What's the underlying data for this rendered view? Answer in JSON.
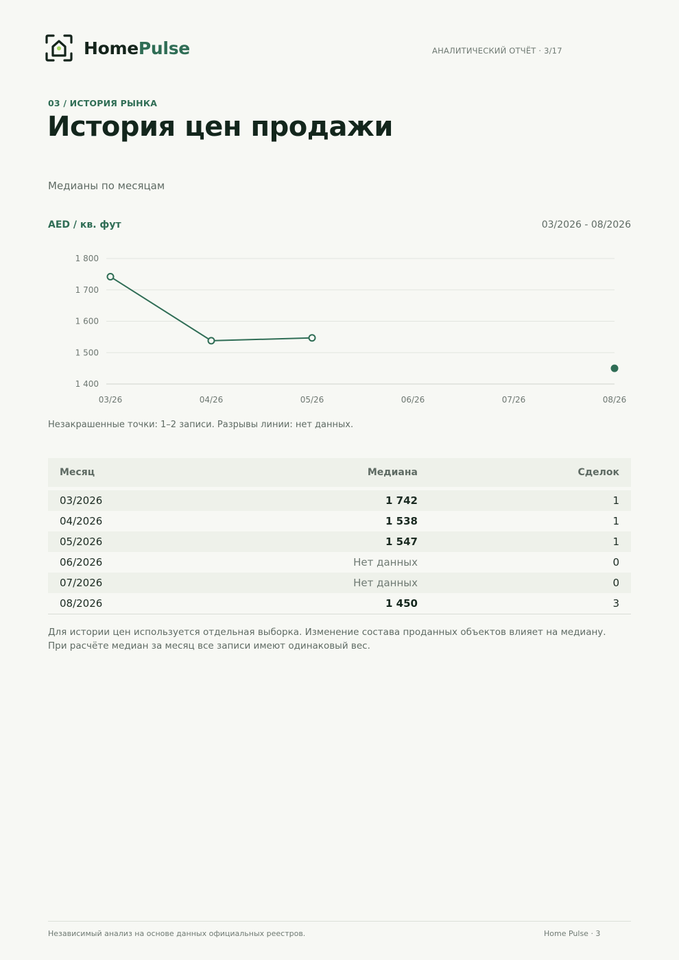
{
  "brand": {
    "name_part1": "Home",
    "name_part2": "Pulse",
    "accent_color": "#2f6d55"
  },
  "header": {
    "report_label": "АНАЛИТИЧЕСКИЙ ОТЧЁТ · 3/17"
  },
  "section": {
    "eyebrow": "03 / ИСТОРИЯ РЫНКА",
    "title": "История цен продажи"
  },
  "chart_section": {
    "subtitle": "Медианы по месяцам",
    "unit": "AED / кв. фут",
    "range": "03/2026 - 08/2026",
    "note": "Незакрашенные точки: 1–2 записи. Разрывы линии: нет данных."
  },
  "chart_data": {
    "type": "line",
    "x": [
      "03/26",
      "04/26",
      "05/26",
      "06/26",
      "07/26",
      "08/26"
    ],
    "yticks": [
      "1 400",
      "1 500",
      "1 600",
      "1 700",
      "1 800"
    ],
    "ylim": [
      1400,
      1800
    ],
    "grid": true,
    "series": [
      {
        "values": [
          1742,
          1538,
          1547,
          null,
          null,
          1450
        ],
        "filled": [
          false,
          false,
          false,
          false,
          false,
          true
        ]
      }
    ],
    "line_color": "#2f6d55"
  },
  "table": {
    "headers": {
      "month": "Месяц",
      "median": "Медиана",
      "deals": "Сделок"
    },
    "rows": [
      {
        "month": "03/2026",
        "median": "1 742",
        "deals": "1"
      },
      {
        "month": "04/2026",
        "median": "1 538",
        "deals": "1"
      },
      {
        "month": "05/2026",
        "median": "1 547",
        "deals": "1"
      },
      {
        "month": "06/2026",
        "median": "Нет данных",
        "deals": "0"
      },
      {
        "month": "07/2026",
        "median": "Нет данных",
        "deals": "0"
      },
      {
        "month": "08/2026",
        "median": "1 450",
        "deals": "3"
      }
    ]
  },
  "footnote": "Для истории цен используется отдельная выборка. Изменение состава проданных объектов влияет на медиану. При расчёте медиан за месяц все записи имеют одинаковый вес.",
  "footer": {
    "left": "Независимый анализ на основе данных официальных реестров.",
    "right": "Home Pulse · 3"
  }
}
